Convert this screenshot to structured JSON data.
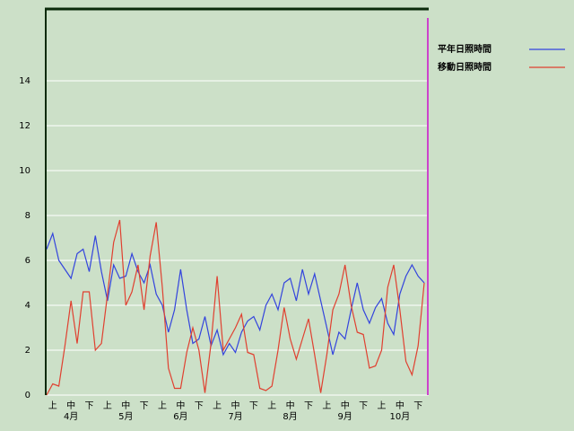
{
  "chart_data": {
    "type": "line",
    "categories": [
      null,
      "上",
      null,
      null,
      "中",
      null,
      null,
      "下",
      null,
      null,
      "上",
      null,
      null,
      "中",
      null,
      null,
      "下",
      null,
      null,
      "上",
      null,
      null,
      "中",
      null,
      null,
      "下",
      null,
      null,
      "上",
      null,
      null,
      "中",
      null,
      null,
      "下",
      null,
      null,
      "上",
      null,
      null,
      "中",
      null,
      null,
      "下",
      null,
      null,
      "上",
      null,
      null,
      "中",
      null,
      null,
      "下",
      null,
      null,
      "上",
      null,
      null,
      "中",
      null,
      null,
      "下",
      null
    ],
    "months": [
      "4月",
      "5月",
      "6月",
      "7月",
      "8月",
      "9月",
      "10月"
    ],
    "series": [
      {
        "name": "平年日照時間",
        "color": "#3344dd",
        "values": [
          6.5,
          7.2,
          6.0,
          5.6,
          5.2,
          6.3,
          6.5,
          5.5,
          7.1,
          5.5,
          4.2,
          5.8,
          5.2,
          5.3,
          6.3,
          5.5,
          5.0,
          5.8,
          4.5,
          4.0,
          2.8,
          3.8,
          5.6,
          3.8,
          2.3,
          2.5,
          3.5,
          2.2,
          2.9,
          1.8,
          2.3,
          1.9,
          2.8,
          3.3,
          3.5,
          2.9,
          4.0,
          4.5,
          3.8,
          5.0,
          5.2,
          4.2,
          5.6,
          4.5,
          5.4,
          4.2,
          3.0,
          1.8,
          2.8,
          2.5,
          3.8,
          5.0,
          3.8,
          3.2,
          3.9,
          4.3,
          3.2,
          2.7,
          4.5,
          5.3,
          5.8,
          5.3,
          5.0
        ]
      },
      {
        "name": "移動日照時間",
        "color": "#e04030",
        "values": [
          0,
          0.5,
          0.4,
          2.2,
          4.2,
          2.3,
          4.6,
          4.6,
          2.0,
          2.3,
          4.5,
          6.8,
          7.8,
          4.0,
          4.6,
          5.8,
          3.8,
          6.2,
          7.7,
          4.8,
          1.2,
          0.3,
          0.3,
          1.9,
          3.0,
          2.0,
          0.1,
          2.3,
          5.3,
          2.0,
          2.5,
          3.0,
          3.6,
          1.9,
          1.8,
          0.3,
          0.2,
          0.4,
          2.0,
          3.9,
          2.5,
          1.6,
          2.5,
          3.4,
          1.8,
          0.1,
          1.8,
          3.8,
          4.5,
          5.8,
          4.0,
          2.8,
          2.7,
          1.2,
          1.3,
          2.0,
          4.8,
          5.8,
          3.8,
          1.5,
          0.9,
          2.2,
          5.0
        ]
      }
    ],
    "ylim": [
      0,
      17.2
    ],
    "yticks": [
      0,
      2,
      4,
      6,
      8,
      10,
      12,
      14
    ],
    "grid": true
  }
}
